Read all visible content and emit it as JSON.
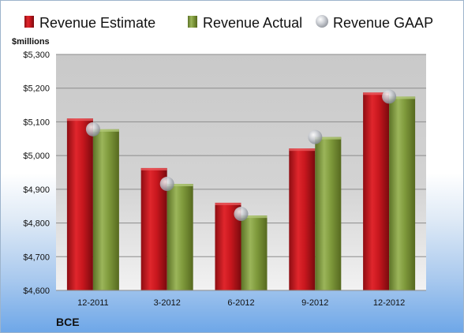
{
  "colors": {
    "estimate": "#c8171e",
    "actual": "#7f9a3c",
    "gaap": "#b8bcc4"
  },
  "legend": {
    "estimate": "Revenue Estimate",
    "actual": "Revenue Actual",
    "gaap": "Revenue GAAP"
  },
  "unit_label": "$millions",
  "company": "BCE",
  "chart_data": {
    "type": "bar",
    "categories": [
      "12-2011",
      "3-2012",
      "6-2012",
      "9-2012",
      "12-2012"
    ],
    "series": [
      {
        "name": "Revenue Estimate",
        "values": [
          5110,
          4963,
          4860,
          5021,
          5187
        ]
      },
      {
        "name": "Revenue Actual",
        "values": [
          5078,
          4916,
          4822,
          5055,
          5175
        ]
      },
      {
        "name": "Revenue GAAP",
        "values": [
          5078,
          4916,
          4827,
          5055,
          5175
        ]
      }
    ],
    "y_ticks": [
      "$4,600",
      "$4,700",
      "$4,800",
      "$4,900",
      "$5,000",
      "$5,100",
      "$5,200",
      "$5,300"
    ],
    "ylim": [
      4600,
      5300
    ],
    "grid": true,
    "legend_position": "top"
  }
}
